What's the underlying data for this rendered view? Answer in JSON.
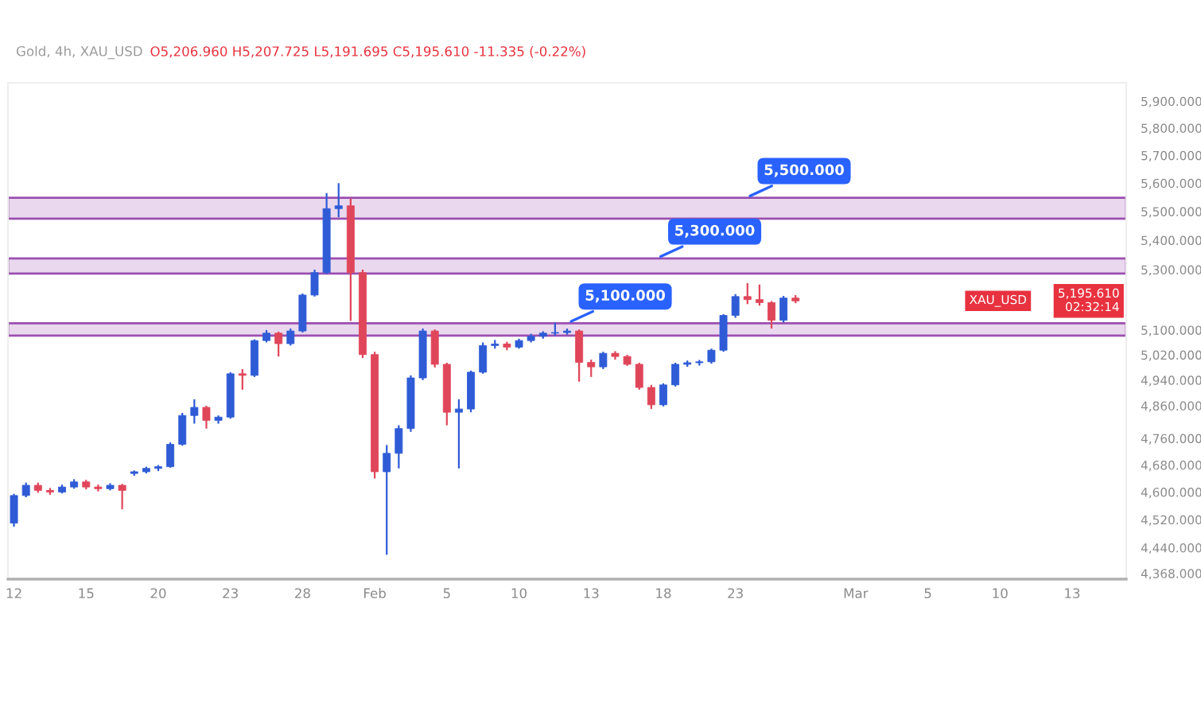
{
  "chart_data": {
    "type": "candlestick",
    "title": "Gold, 4h, XAU_USD",
    "subtitle": "O5,206.960 H5,207.725 L5,191.695 C5,195.610 -11.335 (-0.22%)",
    "categories": [
      "12",
      null,
      null,
      null,
      null,
      null,
      "15",
      null,
      null,
      null,
      null,
      null,
      "20",
      null,
      null,
      null,
      null,
      null,
      "23",
      null,
      null,
      null,
      null,
      null,
      "28",
      null,
      null,
      null,
      null,
      null,
      "Feb",
      null,
      null,
      null,
      null,
      null,
      "5",
      null,
      null,
      null,
      null,
      null,
      "10",
      null,
      null,
      null,
      null,
      null,
      "13",
      null,
      null,
      null,
      null,
      null,
      "18",
      null,
      null,
      null,
      null,
      null,
      "23",
      null,
      null,
      null,
      null,
      null,
      null,
      null,
      null,
      null,
      "Mar",
      null,
      null,
      null,
      null,
      null,
      "5",
      null,
      null,
      null,
      null,
      null,
      "10",
      null,
      null,
      null,
      null,
      null,
      "13",
      null,
      null,
      null,
      null
    ],
    "ohlc": [
      [
        4510,
        4595,
        4500,
        4590
      ],
      [
        4590,
        4628,
        4585,
        4620
      ],
      [
        4620,
        4628,
        4598,
        4605
      ],
      [
        4605,
        4612,
        4592,
        4600
      ],
      [
        4600,
        4622,
        4596,
        4615
      ],
      [
        4615,
        4638,
        4610,
        4630
      ],
      [
        4630,
        4636,
        4608,
        4615
      ],
      [
        4615,
        4622,
        4602,
        4610
      ],
      [
        4610,
        4626,
        4605,
        4620
      ],
      [
        4620,
        4624,
        4550,
        4605
      ],
      [
        4655,
        4664,
        4648,
        4660
      ],
      [
        4660,
        4675,
        4655,
        4670
      ],
      [
        4670,
        4680,
        4662,
        4675
      ],
      [
        4675,
        4748,
        4672,
        4742
      ],
      [
        4742,
        4838,
        4738,
        4830
      ],
      [
        4830,
        4880,
        4805,
        4855
      ],
      [
        4855,
        4860,
        4790,
        4815
      ],
      [
        4815,
        4830,
        4805,
        4825
      ],
      [
        4825,
        4965,
        4820,
        4960
      ],
      [
        4960,
        4975,
        4910,
        4955
      ],
      [
        4955,
        5070,
        4950,
        5066
      ],
      [
        5066,
        5100,
        5060,
        5090
      ],
      [
        5090,
        5095,
        5015,
        5056
      ],
      [
        5056,
        5105,
        5050,
        5097
      ],
      [
        5097,
        5220,
        5092,
        5215
      ],
      [
        5215,
        5300,
        5210,
        5290
      ],
      [
        5290,
        5565,
        5285,
        5510
      ],
      [
        5510,
        5600,
        5480,
        5520
      ],
      [
        5520,
        5545,
        5130,
        5290
      ],
      [
        5290,
        5300,
        5010,
        5021
      ],
      [
        5021,
        5030,
        4640,
        4660
      ],
      [
        4660,
        4740,
        4420,
        4715
      ],
      [
        4715,
        4800,
        4670,
        4790
      ],
      [
        4790,
        4955,
        4780,
        4947
      ],
      [
        4947,
        5105,
        4940,
        5097
      ],
      [
        5097,
        5102,
        4980,
        4990
      ],
      [
        4990,
        4995,
        4800,
        4840
      ],
      [
        4840,
        4880,
        4670,
        4850
      ],
      [
        4850,
        4970,
        4840,
        4965
      ],
      [
        4965,
        5060,
        4960,
        5050
      ],
      [
        5050,
        5068,
        5040,
        5055
      ],
      [
        5055,
        5062,
        5035,
        5045
      ],
      [
        5045,
        5072,
        5040,
        5066
      ],
      [
        5066,
        5088,
        5060,
        5080
      ],
      [
        5080,
        5096,
        5072,
        5090
      ],
      [
        5090,
        5125,
        5082,
        5092
      ],
      [
        5092,
        5105,
        5085,
        5097
      ],
      [
        5097,
        5102,
        4935,
        4996
      ],
      [
        4996,
        5005,
        4950,
        4982
      ],
      [
        4982,
        5030,
        4975,
        5025
      ],
      [
        5025,
        5032,
        5005,
        5015
      ],
      [
        5015,
        5020,
        4985,
        4990
      ],
      [
        4990,
        4995,
        4910,
        4917
      ],
      [
        4917,
        4925,
        4850,
        4863
      ],
      [
        4863,
        4930,
        4858,
        4925
      ],
      [
        4925,
        4995,
        4920,
        4990
      ],
      [
        4990,
        5002,
        4982,
        4995
      ],
      [
        4995,
        5004,
        4986,
        4998
      ],
      [
        4998,
        5040,
        4992,
        5035
      ],
      [
        5035,
        5152,
        5030,
        5148
      ],
      [
        5148,
        5218,
        5140,
        5210
      ],
      [
        5210,
        5255,
        5185,
        5200
      ],
      [
        5200,
        5250,
        5180,
        5190
      ],
      [
        5190,
        5195,
        5105,
        5132
      ],
      [
        5132,
        5212,
        5125,
        5205
      ],
      [
        5205,
        5215,
        5188,
        5195.61
      ],
      null,
      null,
      null,
      null,
      null,
      null,
      null,
      null,
      null,
      null,
      null,
      null,
      null,
      null,
      null,
      null,
      null,
      null,
      null,
      null,
      null,
      null,
      null,
      null,
      null,
      null,
      null
    ],
    "colors": [
      "#2f5bd6",
      "#2f5bd6",
      "#e0465a",
      "#e0465a",
      "#2f5bd6",
      "#2f5bd6",
      "#e0465a",
      "#e0465a",
      "#2f5bd6",
      "#e0465a",
      "#2f5bd6",
      "#2f5bd6",
      "#2f5bd6",
      "#2f5bd6",
      "#2f5bd6",
      "#2f5bd6",
      "#e0465a",
      "#2f5bd6",
      "#2f5bd6",
      "#e0465a",
      "#2f5bd6",
      "#2f5bd6",
      "#e0465a",
      "#2f5bd6",
      "#2f5bd6",
      "#2f5bd6",
      "#2f5bd6",
      "#2f5bd6",
      "#e0465a",
      "#e0465a",
      "#e0465a",
      "#2f5bd6",
      "#2f5bd6",
      "#2f5bd6",
      "#2f5bd6",
      "#e0465a",
      "#e0465a",
      "#2f5bd6",
      "#2f5bd6",
      "#2f5bd6",
      "#2f5bd6",
      "#e0465a",
      "#2f5bd6",
      "#2f5bd6",
      "#2f5bd6",
      "#2f5bd6",
      "#2f5bd6",
      "#e0465a",
      "#e0465a",
      "#2f5bd6",
      "#e0465a",
      "#e0465a",
      "#e0465a",
      "#e0465a",
      "#2f5bd6",
      "#2f5bd6",
      "#2f5bd6",
      "#2f5bd6",
      "#2f5bd6",
      "#2f5bd6",
      "#2f5bd6",
      "#e0465a",
      "#e0465a",
      "#e0465a",
      "#2f5bd6",
      "#e0465a",
      null,
      null,
      null,
      null,
      null,
      null,
      null,
      null,
      null,
      null,
      null,
      null,
      null,
      null,
      null,
      null,
      null,
      null,
      null,
      null,
      null,
      null,
      null,
      null,
      null,
      null,
      null
    ],
    "log": "y",
    "ylim": [
      4352,
      5970
    ],
    "yticks": [
      {
        "value": 5900,
        "label": "5,900.000"
      },
      {
        "value": 5800,
        "label": "5,800.000"
      },
      {
        "value": 5700,
        "label": "5,700.000"
      },
      {
        "value": 5600,
        "label": "5,600.000"
      },
      {
        "value": 5500,
        "label": "5,500.000"
      },
      {
        "value": 5400,
        "label": "5,400.000"
      },
      {
        "value": 5300,
        "label": "5,300.000"
      },
      {
        "value": 5100,
        "label": "5,100.000"
      },
      {
        "value": 5020,
        "label": "5,020.000"
      },
      {
        "value": 4940,
        "label": "4,940.000"
      },
      {
        "value": 4860,
        "label": "4,860.000"
      },
      {
        "value": 4760,
        "label": "4,760.000"
      },
      {
        "value": 4680,
        "label": "4,680.000"
      },
      {
        "value": 4600,
        "label": "4,600.000"
      },
      {
        "value": 4520,
        "label": "4,520.000"
      },
      {
        "value": 4440,
        "label": "4,440.000"
      },
      {
        "value": 4368,
        "label": "4,368.000"
      }
    ],
    "bands": [
      {
        "axis": "y",
        "from": 5475,
        "to": 5548,
        "label": "5,500.000",
        "color": "#9c4fb0"
      },
      {
        "axis": "y",
        "from": 5287,
        "to": 5338,
        "label": "5,300.000",
        "color": "#9c4fb0"
      },
      {
        "axis": "y",
        "from": 5082,
        "to": 5122,
        "label": "5,100.000",
        "color": "#9c4fb0"
      }
    ],
    "annotations": [
      "XAU_USD",
      "5,195.610\n02:32:14"
    ],
    "grid": false,
    "legend": false
  }
}
